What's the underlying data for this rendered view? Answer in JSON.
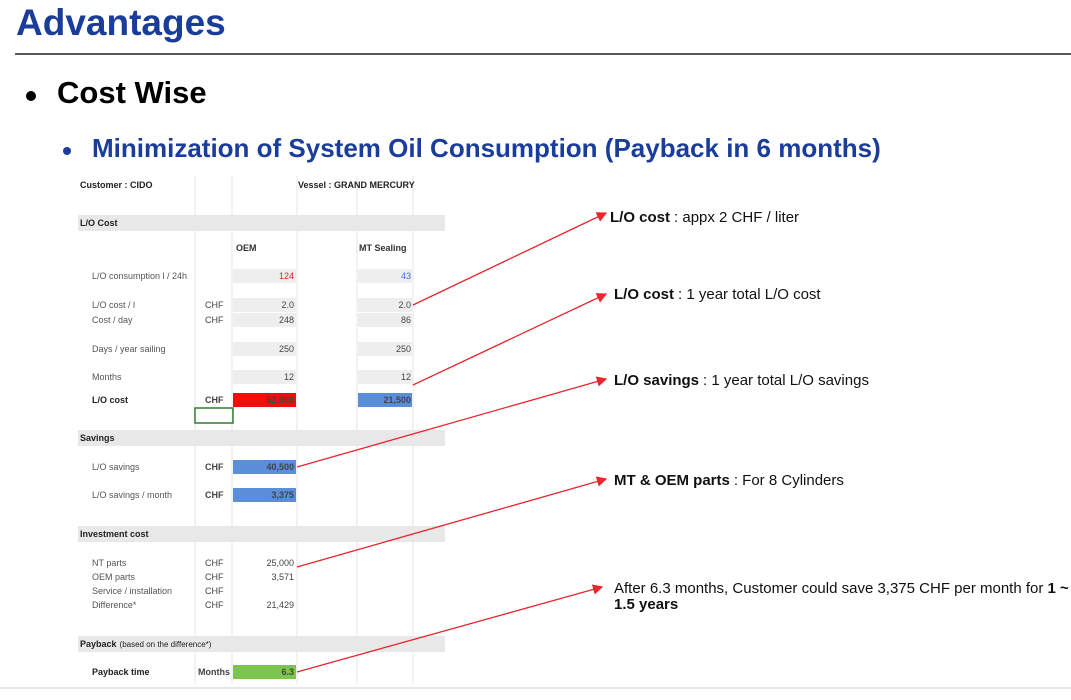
{
  "header": {
    "title": "Advantages"
  },
  "bullets": {
    "level1": "Cost Wise",
    "level2": "Minimization of System Oil Consumption (Payback in 6 months)"
  },
  "sheet": {
    "rows": [
      {
        "label": "Customer : CIDO",
        "vessel": "Vessel : GRAND MERCURY"
      },
      {
        "label": "L/O Cost"
      },
      {
        "oem": "OEM",
        "mt": "MT Sealing"
      },
      {
        "label": "L/O consumption  l / 24h",
        "oem": "124",
        "mt": "43"
      },
      {
        "label": "L/O cost / l",
        "unit": "CHF",
        "oem": "2.0",
        "mt": "2.0"
      },
      {
        "label": "Cost / day",
        "unit": "CHF",
        "oem": "248",
        "mt": "86"
      },
      {
        "label": "Days / year sailing",
        "oem": "250",
        "mt": "250"
      },
      {
        "label": "Months",
        "oem": "12",
        "mt": "12"
      },
      {
        "label": "L/O cost",
        "unit": "CHF",
        "oem": "62,000",
        "mt": "21,500"
      },
      {
        "label": "Savings"
      },
      {
        "label": "L/O savings",
        "unit": "CHF",
        "oem": "40,500"
      },
      {
        "label": "L/O savings / month",
        "unit": "CHF",
        "oem": "3,375"
      },
      {
        "label": "Investment cost"
      },
      {
        "label": "NT parts",
        "unit": "CHF",
        "oem": "25,000"
      },
      {
        "label": "OEM parts",
        "unit": "CHF",
        "oem": "3,571"
      },
      {
        "label": "Service / installation",
        "unit": "CHF"
      },
      {
        "label": "Difference*",
        "unit": "CHF",
        "oem": "21,429"
      },
      {
        "label": "Payback",
        "note": "(based on the difference*)"
      },
      {
        "label": "Payback time",
        "unit": "Months",
        "oem": "6.3"
      }
    ]
  },
  "callouts": [
    {
      "bold": "L/O cost",
      "text": ": appx 2 CHF / liter"
    },
    {
      "bold": "L/O cost",
      "text": ": 1 year total L/O cost"
    },
    {
      "bold": "L/O savings",
      "text": ": 1 year total L/O savings"
    },
    {
      "bold": "MT & OEM parts",
      "text": ": For 8 Cylinders"
    },
    {
      "text": "After 6.3 months, Customer could save 3,375 CHF per month for",
      "bold": "1 ~ 1.5 years"
    }
  ]
}
